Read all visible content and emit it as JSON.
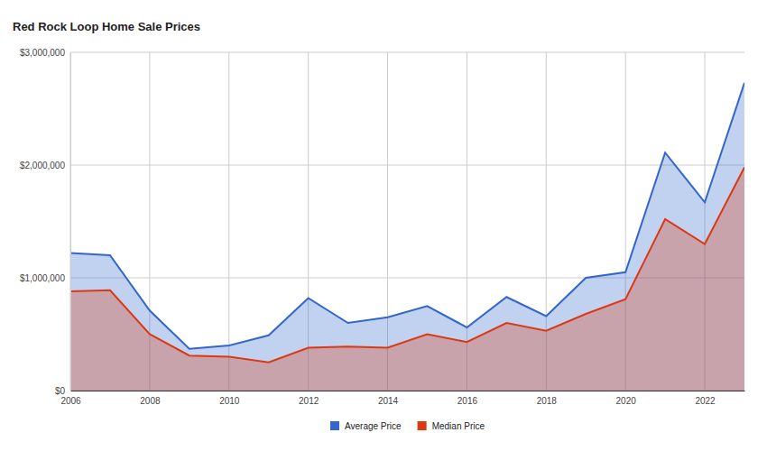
{
  "chart_data": {
    "type": "area",
    "title": "Red Rock Loop Home Sale Prices",
    "x": [
      2006,
      2007,
      2008,
      2009,
      2010,
      2011,
      2012,
      2013,
      2014,
      2015,
      2016,
      2017,
      2018,
      2019,
      2020,
      2021,
      2022,
      2023
    ],
    "series": [
      {
        "name": "Average Price",
        "color": "#3366cc",
        "values": [
          1220000,
          1200000,
          710000,
          370000,
          400000,
          490000,
          820000,
          600000,
          650000,
          750000,
          560000,
          830000,
          660000,
          1000000,
          1050000,
          2110000,
          1670000,
          2730000
        ]
      },
      {
        "name": "Median Price",
        "color": "#dc3912",
        "values": [
          880000,
          890000,
          500000,
          310000,
          300000,
          250000,
          380000,
          390000,
          380000,
          500000,
          430000,
          600000,
          530000,
          680000,
          810000,
          1520000,
          1300000,
          1980000
        ]
      }
    ],
    "xlim": [
      2006,
      2023
    ],
    "xticks": [
      2006,
      2008,
      2010,
      2012,
      2014,
      2016,
      2018,
      2020,
      2022
    ],
    "ylim": [
      0,
      3000000
    ],
    "yticks": [
      {
        "value": 0,
        "label": "$0"
      },
      {
        "value": 1000000,
        "label": "$1,000,000"
      },
      {
        "value": 2000000,
        "label": "$2,000,000"
      },
      {
        "value": 3000000,
        "label": "$3,000,000"
      }
    ],
    "grid": true,
    "legend": "bottom"
  }
}
